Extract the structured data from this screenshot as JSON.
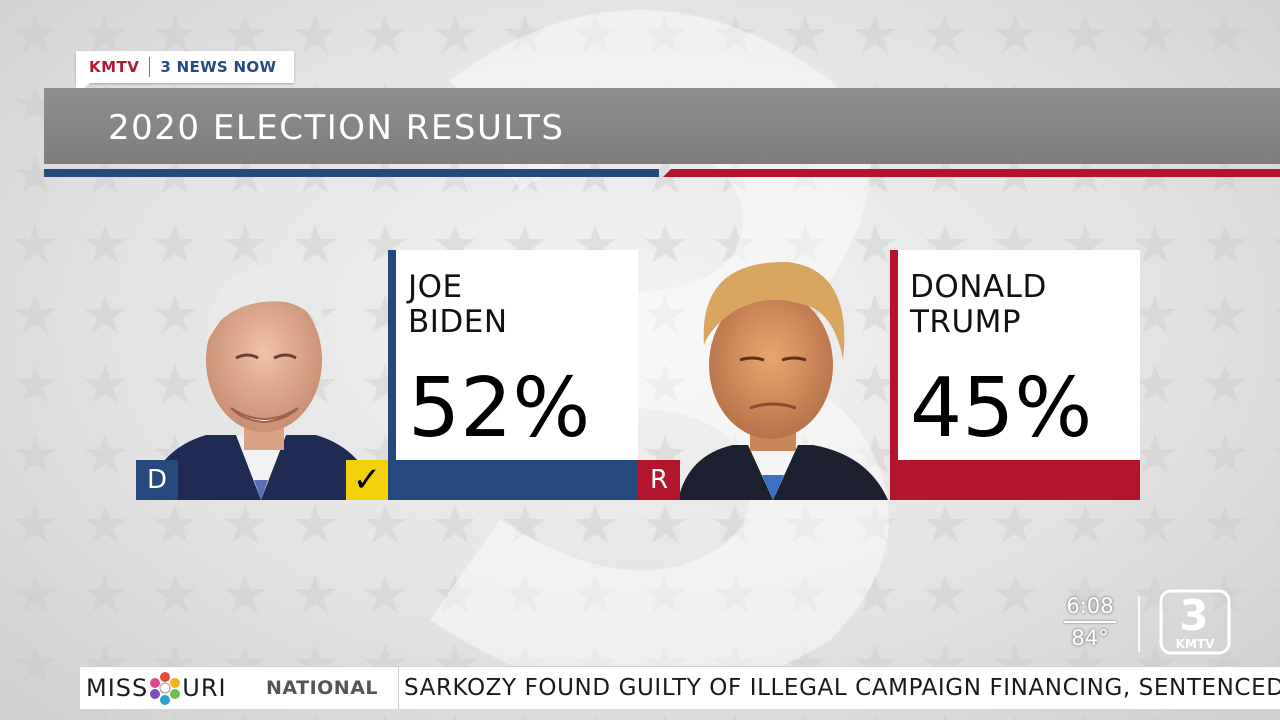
{
  "station": {
    "call_letters": "KMTV",
    "brand": "3 NEWS NOW"
  },
  "graphic": {
    "title": "2020 ELECTION RESULTS"
  },
  "candidates": [
    {
      "name_line1": "JOE",
      "name_line2": "BIDEN",
      "percent": "52%",
      "party": "D",
      "winner": true,
      "party_color": "#25487d"
    },
    {
      "name_line1": "DONALD",
      "name_line2": "TRUMP",
      "percent": "45%",
      "party": "R",
      "winner": false,
      "party_color": "#b3162c"
    }
  ],
  "winner_mark": "✓",
  "ticker": {
    "logo_left": "MISS",
    "logo_right": "URI",
    "section": "NATIONAL",
    "headline": "SARKOZY FOUND GUILTY OF ILLEGAL CAMPAIGN FINANCING, SENTENCED"
  },
  "bug": {
    "time": "6:08",
    "temperature": "84°",
    "logo_number": "3",
    "logo_text": "KMTV"
  },
  "colors": {
    "dem_blue": "#25487d",
    "rep_red": "#b3162c",
    "check_yellow": "#f0d10a",
    "title_gray": "#8a8a8a"
  }
}
